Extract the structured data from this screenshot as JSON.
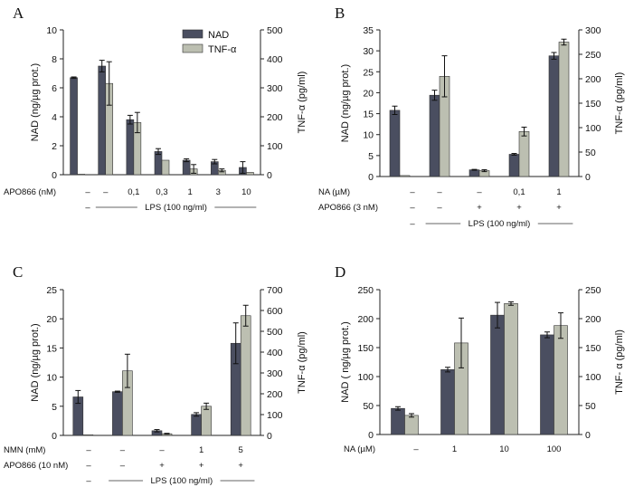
{
  "figure": {
    "legend": {
      "entries": [
        {
          "label": "NAD",
          "color": "#4a4e60"
        },
        {
          "label": "TNF-α",
          "color": "#bcbfb1"
        }
      ]
    },
    "colors": {
      "nad": "#4a4e60",
      "tnf": "#bcbfb1",
      "stroke": "#333333"
    }
  },
  "chart_data": [
    {
      "panel": "A",
      "type": "bar",
      "grouped": true,
      "left_axis": {
        "label": "NAD (ng/µg prot.)",
        "ylim": [
          0,
          10
        ],
        "ticks": [
          0,
          2,
          4,
          6,
          8,
          10
        ]
      },
      "right_axis": {
        "label": "TNF-α (pg/ml)",
        "ylim": [
          0,
          500
        ],
        "ticks": [
          0,
          100,
          200,
          300,
          400,
          500
        ]
      },
      "series": [
        {
          "name": "NAD",
          "axis": "left",
          "values": [
            6.7,
            7.5,
            3.8,
            1.6,
            1.0,
            0.9,
            0.5
          ],
          "errors": [
            0.05,
            0.4,
            0.3,
            0.2,
            0.1,
            0.15,
            0.4
          ]
        },
        {
          "name": "TNF-α",
          "axis": "right",
          "values": [
            2,
            315,
            180,
            50,
            20,
            15,
            8
          ],
          "errors": [
            0,
            75,
            35,
            0,
            15,
            5,
            0
          ]
        }
      ],
      "condition_rows": [
        {
          "label": "APO866 (nM)",
          "values": [
            "–",
            "–",
            "0,1",
            "0,3",
            "1",
            "3",
            "10"
          ]
        },
        {
          "label": "",
          "values": [
            "–",
            "",
            "",
            "",
            "",
            "",
            ""
          ],
          "bracket": {
            "text": "LPS (100 ng/ml)",
            "from": 1,
            "to": 6
          }
        }
      ]
    },
    {
      "panel": "B",
      "type": "bar",
      "grouped": true,
      "left_axis": {
        "label": "NAD (ng/µg prot.)",
        "ylim": [
          0,
          35
        ],
        "ticks": [
          0,
          5,
          10,
          15,
          20,
          25,
          30,
          35
        ]
      },
      "right_axis": {
        "label": "TNF-α (pg/ml)",
        "ylim": [
          0,
          300
        ],
        "ticks": [
          0,
          50,
          100,
          150,
          200,
          250,
          300
        ]
      },
      "series": [
        {
          "name": "NAD",
          "axis": "left",
          "values": [
            15.8,
            19.4,
            1.6,
            5.3,
            28.8
          ],
          "errors": [
            1.0,
            1.2,
            0.1,
            0.2,
            0.8
          ]
        },
        {
          "name": "TNF-α",
          "axis": "right",
          "values": [
            2,
            205,
            12,
            92,
            275
          ],
          "errors": [
            0,
            42,
            2,
            9,
            6
          ]
        }
      ],
      "condition_rows": [
        {
          "label": "NA (µM)",
          "values": [
            "–",
            "–",
            "–",
            "0,1",
            "1"
          ]
        },
        {
          "label": "APO866 (3 nM)",
          "values": [
            "–",
            "–",
            "+",
            "+",
            "+"
          ]
        },
        {
          "label": "",
          "values": [
            "–",
            "",
            "",
            "",
            ""
          ],
          "bracket": {
            "text": "LPS (100 ng/ml)",
            "from": 1,
            "to": 4
          }
        }
      ]
    },
    {
      "panel": "C",
      "type": "bar",
      "grouped": true,
      "left_axis": {
        "label": "NAD (ng/µg prot.)",
        "ylim": [
          0,
          25
        ],
        "ticks": [
          0,
          5,
          10,
          15,
          20,
          25
        ]
      },
      "right_axis": {
        "label": "TNF-α (pg/ml)",
        "ylim": [
          0,
          700
        ],
        "ticks": [
          0,
          100,
          200,
          300,
          400,
          500,
          600,
          700
        ]
      },
      "series": [
        {
          "name": "NAD",
          "axis": "left",
          "values": [
            6.6,
            7.5,
            0.8,
            3.6,
            15.8
          ],
          "errors": [
            1.1,
            0.1,
            0.2,
            0.3,
            3.5
          ]
        },
        {
          "name": "TNF-α",
          "axis": "right",
          "values": [
            3,
            310,
            8,
            140,
            575
          ],
          "errors": [
            0,
            80,
            2,
            15,
            50
          ]
        }
      ],
      "condition_rows": [
        {
          "label": "NMN (mM)",
          "values": [
            "–",
            "–",
            "–",
            "1",
            "5"
          ]
        },
        {
          "label": "APO866 (10 nM)",
          "values": [
            "–",
            "–",
            "+",
            "+",
            "+"
          ]
        },
        {
          "label": "",
          "values": [
            "–",
            "",
            "",
            "",
            ""
          ],
          "bracket": {
            "text": "LPS (100 ng/ml)",
            "from": 1,
            "to": 4
          }
        }
      ]
    },
    {
      "panel": "D",
      "type": "bar",
      "grouped": true,
      "left_axis": {
        "label": "NAD ( ng/µg prot.)",
        "ylim": [
          0,
          250
        ],
        "ticks": [
          0,
          50,
          100,
          150,
          200,
          250
        ]
      },
      "right_axis": {
        "label": "TNF- α (pg/ml)",
        "ylim": [
          0,
          250
        ],
        "ticks": [
          0,
          50,
          100,
          150,
          200,
          250
        ]
      },
      "series": [
        {
          "name": "NAD",
          "axis": "left",
          "values": [
            45,
            112,
            206,
            172
          ],
          "errors": [
            3,
            4,
            22,
            5
          ]
        },
        {
          "name": "TNF-α",
          "axis": "right",
          "values": [
            33,
            158,
            226,
            188
          ],
          "errors": [
            3,
            43,
            3,
            22
          ]
        }
      ],
      "condition_rows": [
        {
          "label": "NA (µM)",
          "values": [
            "–",
            "1",
            "10",
            "100"
          ]
        }
      ]
    }
  ]
}
